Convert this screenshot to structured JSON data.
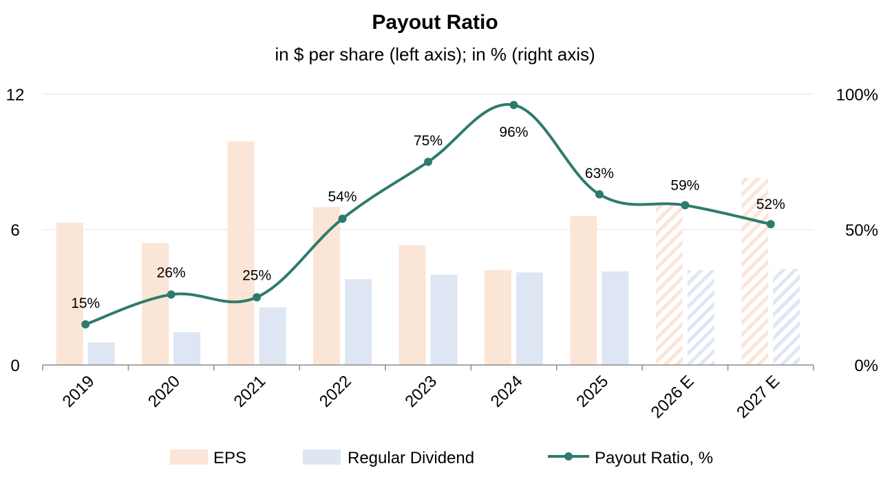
{
  "chart_data": {
    "type": "bar",
    "title": "Payout Ratio",
    "subtitle": "in $ per share (left axis); in % (right axis)",
    "categories": [
      "2019",
      "2020",
      "2021",
      "2022",
      "2023",
      "2024",
      "2025",
      "2026 E",
      "2027 E"
    ],
    "estimated_categories": [
      "2026 E",
      "2027 E"
    ],
    "left_axis": {
      "range": [
        0,
        12
      ],
      "ticks": [
        0,
        6,
        12
      ],
      "tick_labels": [
        "0",
        "6",
        "12"
      ]
    },
    "right_axis": {
      "range": [
        0,
        100
      ],
      "ticks": [
        0,
        50,
        100
      ],
      "tick_labels": [
        "0%",
        "50%",
        "100%"
      ]
    },
    "grid": true,
    "legend_position": "bottom",
    "series": [
      {
        "name": "EPS",
        "type": "bar",
        "axis": "left",
        "color": "#FBE5D6",
        "values": [
          6.3,
          5.4,
          9.9,
          7.0,
          5.3,
          4.2,
          6.6,
          7.1,
          8.3
        ]
      },
      {
        "name": "Regular Dividend",
        "type": "bar",
        "axis": "left",
        "color": "#DEE6F4",
        "values": [
          1.0,
          1.45,
          2.55,
          3.8,
          4.0,
          4.1,
          4.15,
          4.2,
          4.25
        ]
      },
      {
        "name": "Payout Ratio, %",
        "type": "line",
        "axis": "right",
        "color": "#2E7B6E",
        "values": [
          15,
          26,
          25,
          54,
          75,
          96,
          63,
          59,
          52
        ],
        "labels": [
          "15%",
          "26%",
          "25%",
          "54%",
          "75%",
          "96%",
          "63%",
          "59%",
          "52%"
        ]
      }
    ]
  }
}
